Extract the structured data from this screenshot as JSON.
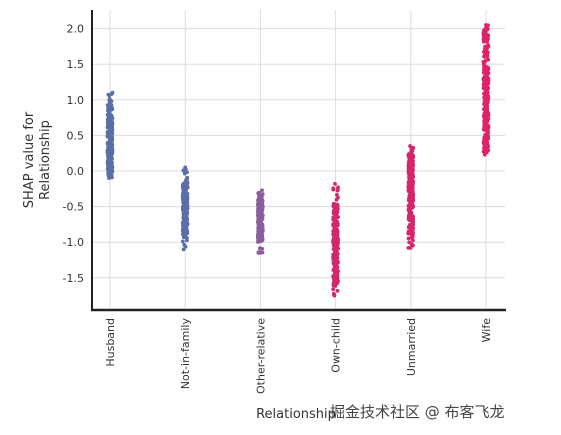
{
  "chart_data": {
    "type": "scatter",
    "title": "",
    "xlabel": "Relationship",
    "ylabel_lines": [
      "SHAP value for",
      "Relationship"
    ],
    "categories": [
      "Husband",
      "Not-in-family",
      "Other-relative",
      "Own-child",
      "Unmarried",
      "Wife"
    ],
    "ylim": [
      -1.85,
      2.25
    ],
    "yticks": [
      "2.0",
      "1.5",
      "1.0",
      "0.5",
      "0.0",
      "-0.5",
      "-1.0",
      "-1.5"
    ],
    "grid": true,
    "series": [
      {
        "category": "Husband",
        "min": -0.1,
        "max": 1.1,
        "dense_min": -0.05,
        "dense_max": 0.95,
        "color": "#5b6ea8"
      },
      {
        "category": "Not-in-family",
        "min": -1.1,
        "max": 0.05,
        "dense_min": -0.9,
        "dense_max": -0.15,
        "color": "#5b6ea8"
      },
      {
        "category": "Other-relative",
        "min": -1.15,
        "max": -0.27,
        "dense_min": -1.0,
        "dense_max": -0.4,
        "color": "#8a5f9a"
      },
      {
        "category": "Own-child",
        "min": -1.75,
        "max": -0.18,
        "dense_min": -1.6,
        "dense_max": -0.45,
        "color": "#d6266b"
      },
      {
        "category": "Unmarried",
        "min": -1.08,
        "max": 0.35,
        "dense_min": -0.95,
        "dense_max": 0.25,
        "color": "#d6266b"
      },
      {
        "category": "Wife",
        "min": 0.23,
        "max": 2.05,
        "dense_min": 0.3,
        "dense_max": 1.98,
        "color": "#e0226a"
      }
    ]
  },
  "watermark": "掘金技术社区 @ 布客飞龙"
}
